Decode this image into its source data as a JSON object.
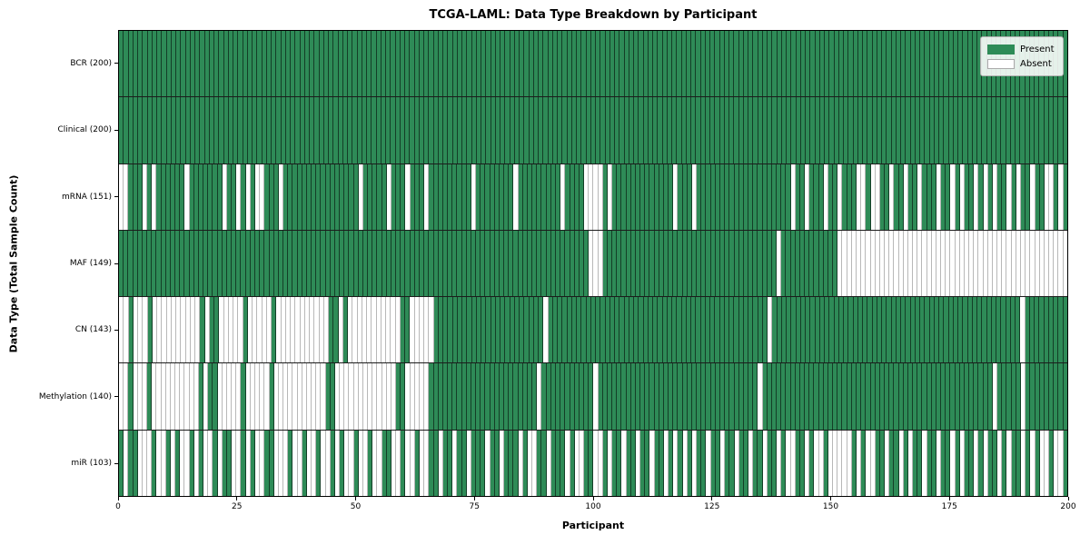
{
  "chart_data": {
    "type": "heatmap",
    "title": "TCGA-LAML: Data Type Breakdown by Participant",
    "xlabel": "Participant",
    "ylabel": "Data Type (Total Sample Count)",
    "x_range": [
      0,
      200
    ],
    "x_ticks": [
      "0",
      "25",
      "50",
      "75",
      "100",
      "125",
      "150",
      "175",
      "200"
    ],
    "n_participants": 200,
    "grid": "per-cell vertical lines, per-row horizontal lines",
    "legend": {
      "present": "Present",
      "absent": "Absent",
      "position": "upper right"
    },
    "colors": {
      "present": "#2e8b57",
      "absent": "#ffffff",
      "gridline": "#1c1c1c"
    },
    "encoding": "pattern: one char per participant (index 0-199); 1=Present, 0=Absent",
    "rows": [
      {
        "label": "BCR (200)",
        "data_type": "BCR",
        "present_count": 200,
        "pattern": "1111111111111111111111111111111111111111111111111111111111111111111111111111111111111111111111111111111111111111111111111111111111111111111111111111111111111111111111111111111111111111111111111111111"
      },
      {
        "label": "Clinical (200)",
        "data_type": "Clinical",
        "present_count": 200,
        "pattern": "1111111111111111111111111111111111111111111111111111111111111111111111111111111111111111111111111111111111111111111111111111111111111111111111111111111111111111111111111111111111111111111111111111111"
      },
      {
        "label": "mRNA (151)",
        "data_type": "mRNA",
        "present_count": 151,
        "pattern": "0011101011111101111111011010100111011111111111111110111110111011101111111110111111110111111111011110000101111111111111011101111111111111111111101101110110111001001101101101110110101101010110101101100101"
      },
      {
        "label": "MAF (149)",
        "data_type": "MAF",
        "present_count": 149,
        "pattern": "1111111111111111111111111111111111111111111111111111111111111111111111111111111111111111111111111111000111111111111111111111111111111111111101111111111110000000000000000000000000000000000000000000000000"
      },
      {
        "label": "CN (143)",
        "data_type": "CN",
        "present_count": 143,
        "pattern": "0010001000000000010110000010000010000000000011010000000000011000001111111111111111111111101111111111111111111111111111111111111111111111011111111111111111111111111111111111111111111111111110111111111"
      },
      {
        "label": "Methylation (140)",
        "data_type": "Methylation",
        "present_count": 140,
        "pattern": "0010001000000000010110000010000010000000000011000000000000011000001111111111111111111111101111111111101111111111111111111111111111111111011111111111111111111111111111111111111111111111110111110111111111"
      },
      {
        "label": "miR (103)",
        "data_type": "miR",
        "present_count": 103,
        "pattern": "1011000100101001010010110010100110001001001001010010010011001001001101101101110110111010011011101001100101101101101101010101101101101101101101001101001000001010011011010110110110101101011010110101001001"
      }
    ]
  }
}
